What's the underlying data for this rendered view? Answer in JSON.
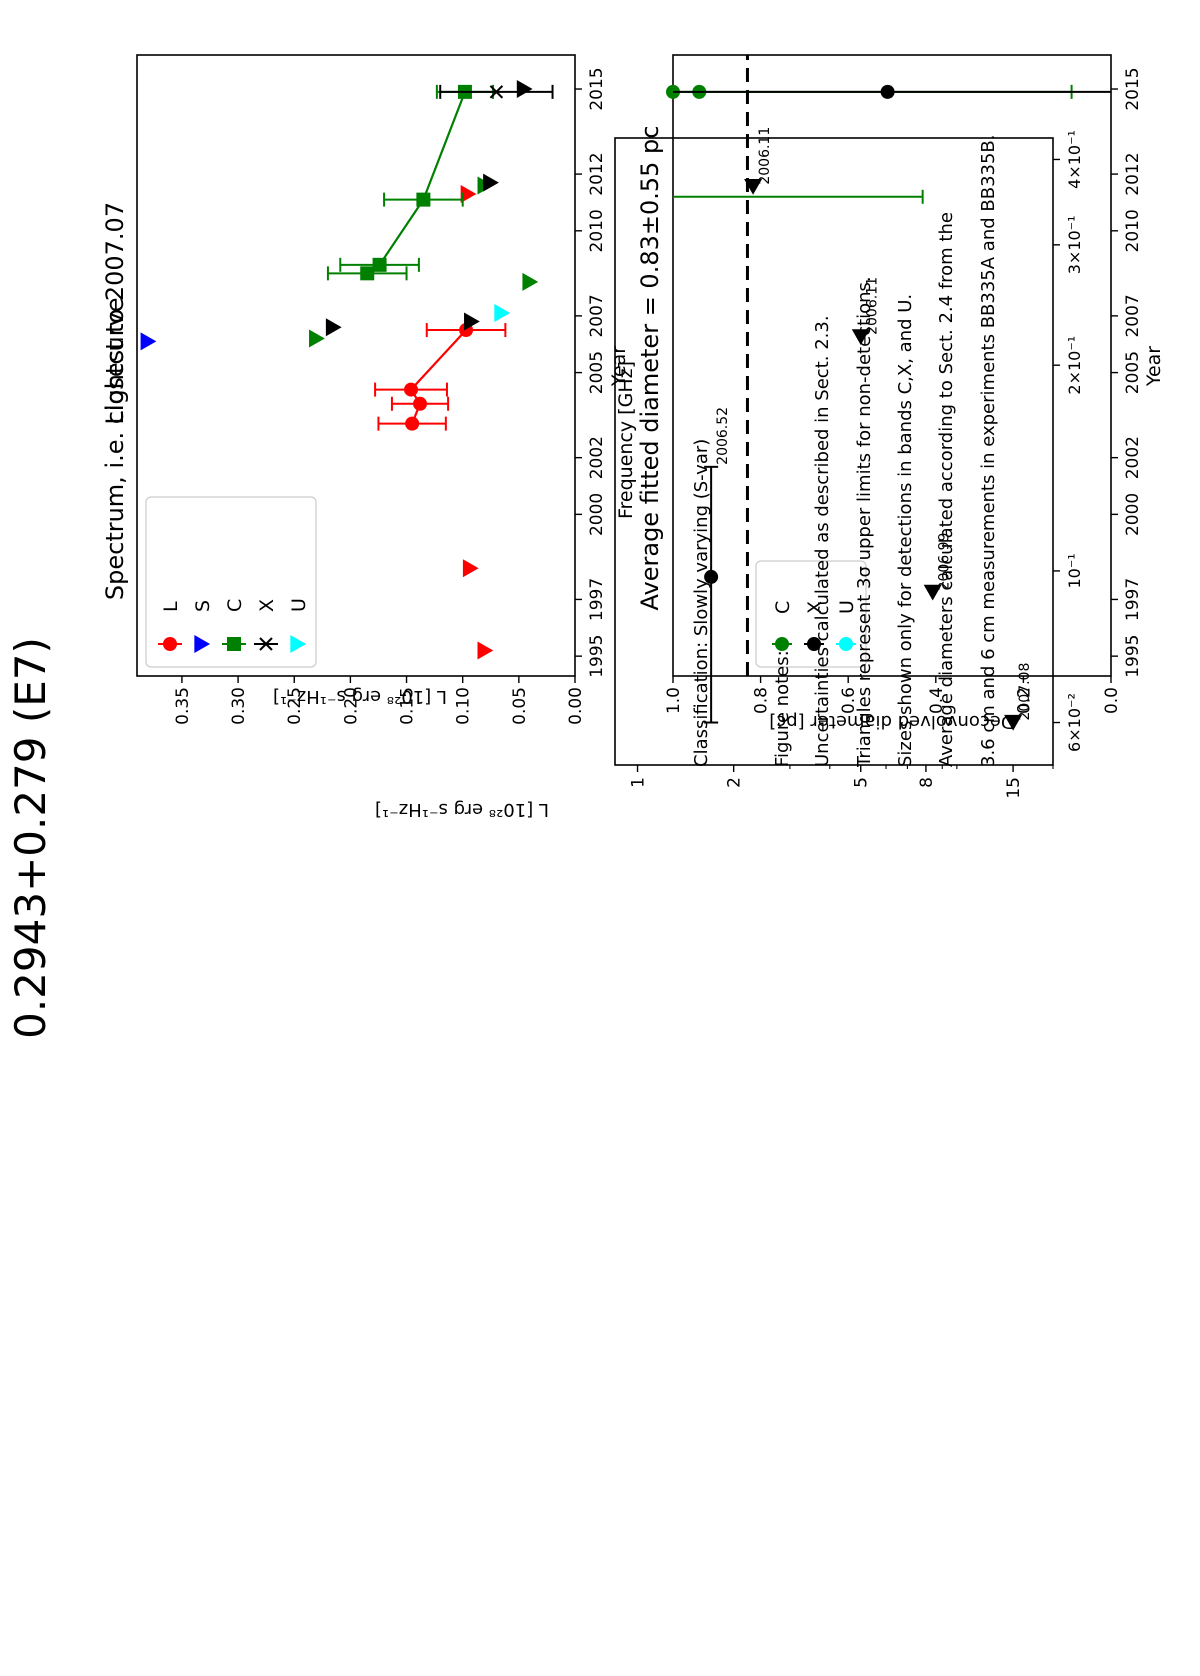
{
  "page": {
    "title": "0.2943+0.279 (E7)",
    "classification": "Classification: Slowly varying (S-var)",
    "notes_heading": "Figure notes:",
    "notes": [
      "Uncertainties calculated as described in Sect. 2.3.",
      "Triangles represent 3σ upper limits for non-detections.",
      "Sizes shown only for detections in bands C,X, and U.",
      "Average diameters calculated according to Sect. 2.4 from the",
      "3.6 cm and 6 cm measurements in experiments BB335A and BB335B."
    ]
  },
  "chart_data": [
    {
      "id": "lightcurve",
      "type": "scatter",
      "title": "Lightcurve",
      "xlabel": "Year",
      "ylabel": "L [10²⁸ erg s⁻¹Hz⁻¹]",
      "xlim": [
        1994.3,
        2016.2
      ],
      "ylim": [
        0.0,
        0.39
      ],
      "xticks": [
        "1995",
        "1997",
        "2000",
        "2002",
        "2005",
        "2007",
        "2010",
        "2012",
        "2015"
      ],
      "yticks": [
        "0.00",
        "0.05",
        "0.10",
        "0.15",
        "0.20",
        "0.25",
        "0.30",
        "0.35"
      ],
      "legend": {
        "placement": "top-left",
        "entries": [
          "L",
          "S",
          "C",
          "X",
          "U"
        ]
      },
      "colors": {
        "L": "#ff0000",
        "S": "#0000ff",
        "C": "#008000",
        "X": "#000000",
        "U": "#00ffff"
      },
      "series": [
        {
          "name": "L",
          "color": "#ff0000",
          "marker": "circle",
          "connected": true,
          "points": [
            {
              "x": 2003.2,
              "y": 0.145,
              "err_lo": 0.03,
              "err_hi": 0.03
            },
            {
              "x": 2003.9,
              "y": 0.138,
              "err_lo": 0.025,
              "err_hi": 0.025
            },
            {
              "x": 2004.4,
              "y": 0.146,
              "err_lo": 0.032,
              "err_hi": 0.032
            },
            {
              "x": 2006.5,
              "y": 0.097,
              "err_lo": 0.035,
              "err_hi": 0.035
            }
          ],
          "upper_limits": [
            {
              "x": 1995.2,
              "y": 0.08
            },
            {
              "x": 1998.1,
              "y": 0.093
            },
            {
              "x": 2011.3,
              "y": 0.095
            }
          ]
        },
        {
          "name": "S",
          "color": "#0000ff",
          "marker": "triangle",
          "upper_limits": [
            {
              "x": 2006.1,
              "y": 0.38
            }
          ]
        },
        {
          "name": "C",
          "color": "#008000",
          "marker": "square",
          "connected": true,
          "points": [
            {
              "x": 2008.5,
              "y": 0.185,
              "err_lo": 0.035,
              "err_hi": 0.035
            },
            {
              "x": 2008.8,
              "y": 0.174,
              "err_lo": 0.035,
              "err_hi": 0.035
            },
            {
              "x": 2011.1,
              "y": 0.135,
              "err_lo": 0.035,
              "err_hi": 0.035
            },
            {
              "x": 2014.9,
              "y": 0.098,
              "err_lo": 0.025,
              "err_hi": 0.025
            }
          ],
          "upper_limits": [
            {
              "x": 2006.2,
              "y": 0.23
            },
            {
              "x": 2008.2,
              "y": 0.04
            },
            {
              "x": 2011.6,
              "y": 0.08
            }
          ]
        },
        {
          "name": "X",
          "color": "#000000",
          "marker": "x",
          "points": [
            {
              "x": 2014.9,
              "y": 0.07,
              "err_lo": 0.05,
              "err_hi": 0.05
            }
          ],
          "upper_limits": [
            {
              "x": 2006.6,
              "y": 0.215
            },
            {
              "x": 2006.8,
              "y": 0.092
            },
            {
              "x": 2011.7,
              "y": 0.075
            },
            {
              "x": 2015.0,
              "y": 0.045
            }
          ]
        },
        {
          "name": "U",
          "color": "#00ffff",
          "marker": "triangle",
          "upper_limits": [
            {
              "x": 2007.1,
              "y": 0.065
            }
          ]
        }
      ]
    },
    {
      "id": "spectrum",
      "type": "scatter",
      "title": "Spectrum, i.e. closest to 2007.07",
      "xlabel": "Frequency [GHz]",
      "ylabel": "L [10²⁸ erg s⁻¹Hz⁻¹]",
      "xscale": "log",
      "yscale": "log",
      "xlim": [
        0.85,
        20
      ],
      "ylim": [
        0.052,
        0.43
      ],
      "xticks": [
        "1",
        "2",
        "5",
        "8",
        "15"
      ],
      "yticks": [
        "4×10⁻¹",
        "3×10⁻¹",
        "2×10⁻¹",
        "10⁻¹",
        "6×10⁻²"
      ],
      "points": [
        {
          "x": 1.7,
          "y": 0.098,
          "err_lo": 0.038,
          "err_hi": 0.044,
          "label": "2006.52",
          "kind": "detection"
        },
        {
          "x": 2.3,
          "y": 0.365,
          "label": "2006.11",
          "kind": "upper_limit"
        },
        {
          "x": 5.0,
          "y": 0.22,
          "label": "2006.11",
          "kind": "upper_limit"
        },
        {
          "x": 8.4,
          "y": 0.093,
          "label": "2006.99",
          "kind": "upper_limit"
        },
        {
          "x": 15.0,
          "y": 0.06,
          "label": "2007.08",
          "kind": "upper_limit"
        }
      ]
    },
    {
      "id": "diameter",
      "type": "scatter",
      "title": "Average fitted diameter = 0.83±0.55 pc",
      "xlabel": "Year",
      "ylabel": "Deconvolved diameter [pc]",
      "xlim": [
        1994.3,
        2016.2
      ],
      "ylim": [
        0.0,
        1.0
      ],
      "xticks": [
        "1995",
        "1997",
        "2000",
        "2002",
        "2005",
        "2007",
        "2010",
        "2012",
        "2015"
      ],
      "yticks": [
        "0.0",
        "0.2",
        "0.4",
        "0.6",
        "0.8",
        "1.0"
      ],
      "average_line": 0.83,
      "legend": {
        "placement": "bottom-left",
        "entries": [
          "C",
          "X",
          "U"
        ]
      },
      "series": [
        {
          "name": "C",
          "color": "#008000",
          "points": [
            {
              "x": 2011.2,
              "y": 1.08,
              "err_lo": 0.65,
              "err_hi": 0.0
            },
            {
              "x": 2014.9,
              "y": 0.94,
              "err_lo": 0.85,
              "err_hi": 0.08
            },
            {
              "x": 2014.9,
              "y": 1.0,
              "err_lo": 0.0,
              "err_hi": 0.0
            }
          ]
        },
        {
          "name": "X",
          "color": "#000000",
          "points": [
            {
              "x": 2014.9,
              "y": 0.51,
              "err_lo": 0.55,
              "err_hi": 0.6
            }
          ]
        },
        {
          "name": "U",
          "color": "#00ffff",
          "points": []
        }
      ]
    }
  ]
}
